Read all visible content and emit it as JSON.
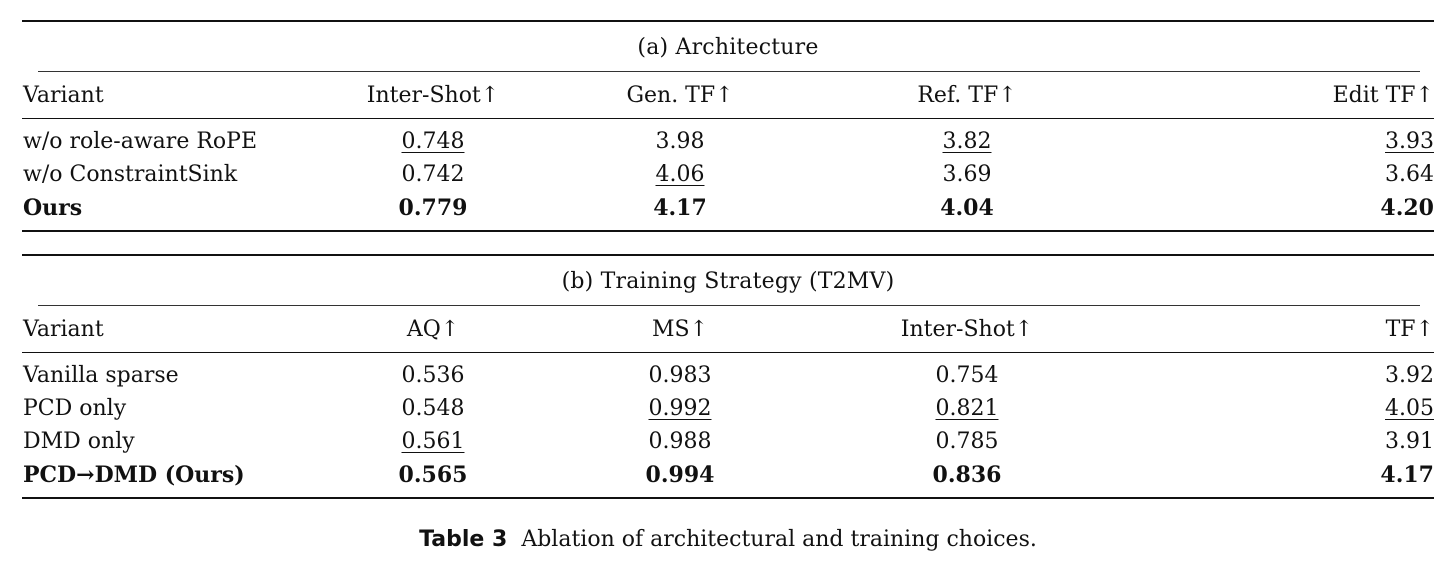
{
  "architecture": {
    "title": "(a) Architecture",
    "headers": [
      "Variant",
      "Inter-Shot↑",
      "Gen. TF↑",
      "Ref. TF↑",
      "Edit TF↑"
    ],
    "rows": [
      {
        "variant": "w/o role-aware RoPE",
        "values": [
          "0.748",
          "3.98",
          "3.82",
          "3.93"
        ],
        "underline": [
          true,
          false,
          true,
          true
        ],
        "bold": false
      },
      {
        "variant": "w/o ConstraintSink",
        "values": [
          "0.742",
          "4.06",
          "3.69",
          "3.64"
        ],
        "underline": [
          false,
          true,
          false,
          false
        ],
        "bold": false
      },
      {
        "variant": "Ours",
        "values": [
          "0.779",
          "4.17",
          "4.04",
          "4.20"
        ],
        "underline": [
          false,
          false,
          false,
          false
        ],
        "bold": true
      }
    ]
  },
  "training": {
    "title": "(b) Training Strategy (T2MV)",
    "headers": [
      "Variant",
      "AQ↑",
      "MS↑",
      "Inter-Shot↑",
      "TF↑"
    ],
    "rows": [
      {
        "variant": "Vanilla sparse",
        "values": [
          "0.536",
          "0.983",
          "0.754",
          "3.92"
        ],
        "underline": [
          false,
          false,
          false,
          false
        ],
        "bold": false
      },
      {
        "variant": "PCD only",
        "values": [
          "0.548",
          "0.992",
          "0.821",
          "4.05"
        ],
        "underline": [
          false,
          true,
          true,
          true
        ],
        "bold": false
      },
      {
        "variant": "DMD only",
        "values": [
          "0.561",
          "0.988",
          "0.785",
          "3.91"
        ],
        "underline": [
          true,
          false,
          false,
          false
        ],
        "bold": false
      },
      {
        "variant": "PCD→DMD (Ours)",
        "values": [
          "0.565",
          "0.994",
          "0.836",
          "4.17"
        ],
        "underline": [
          false,
          false,
          false,
          false
        ],
        "bold": true
      }
    ]
  },
  "caption": {
    "label": "Table 3",
    "text": "Ablation of architectural and training choices."
  }
}
